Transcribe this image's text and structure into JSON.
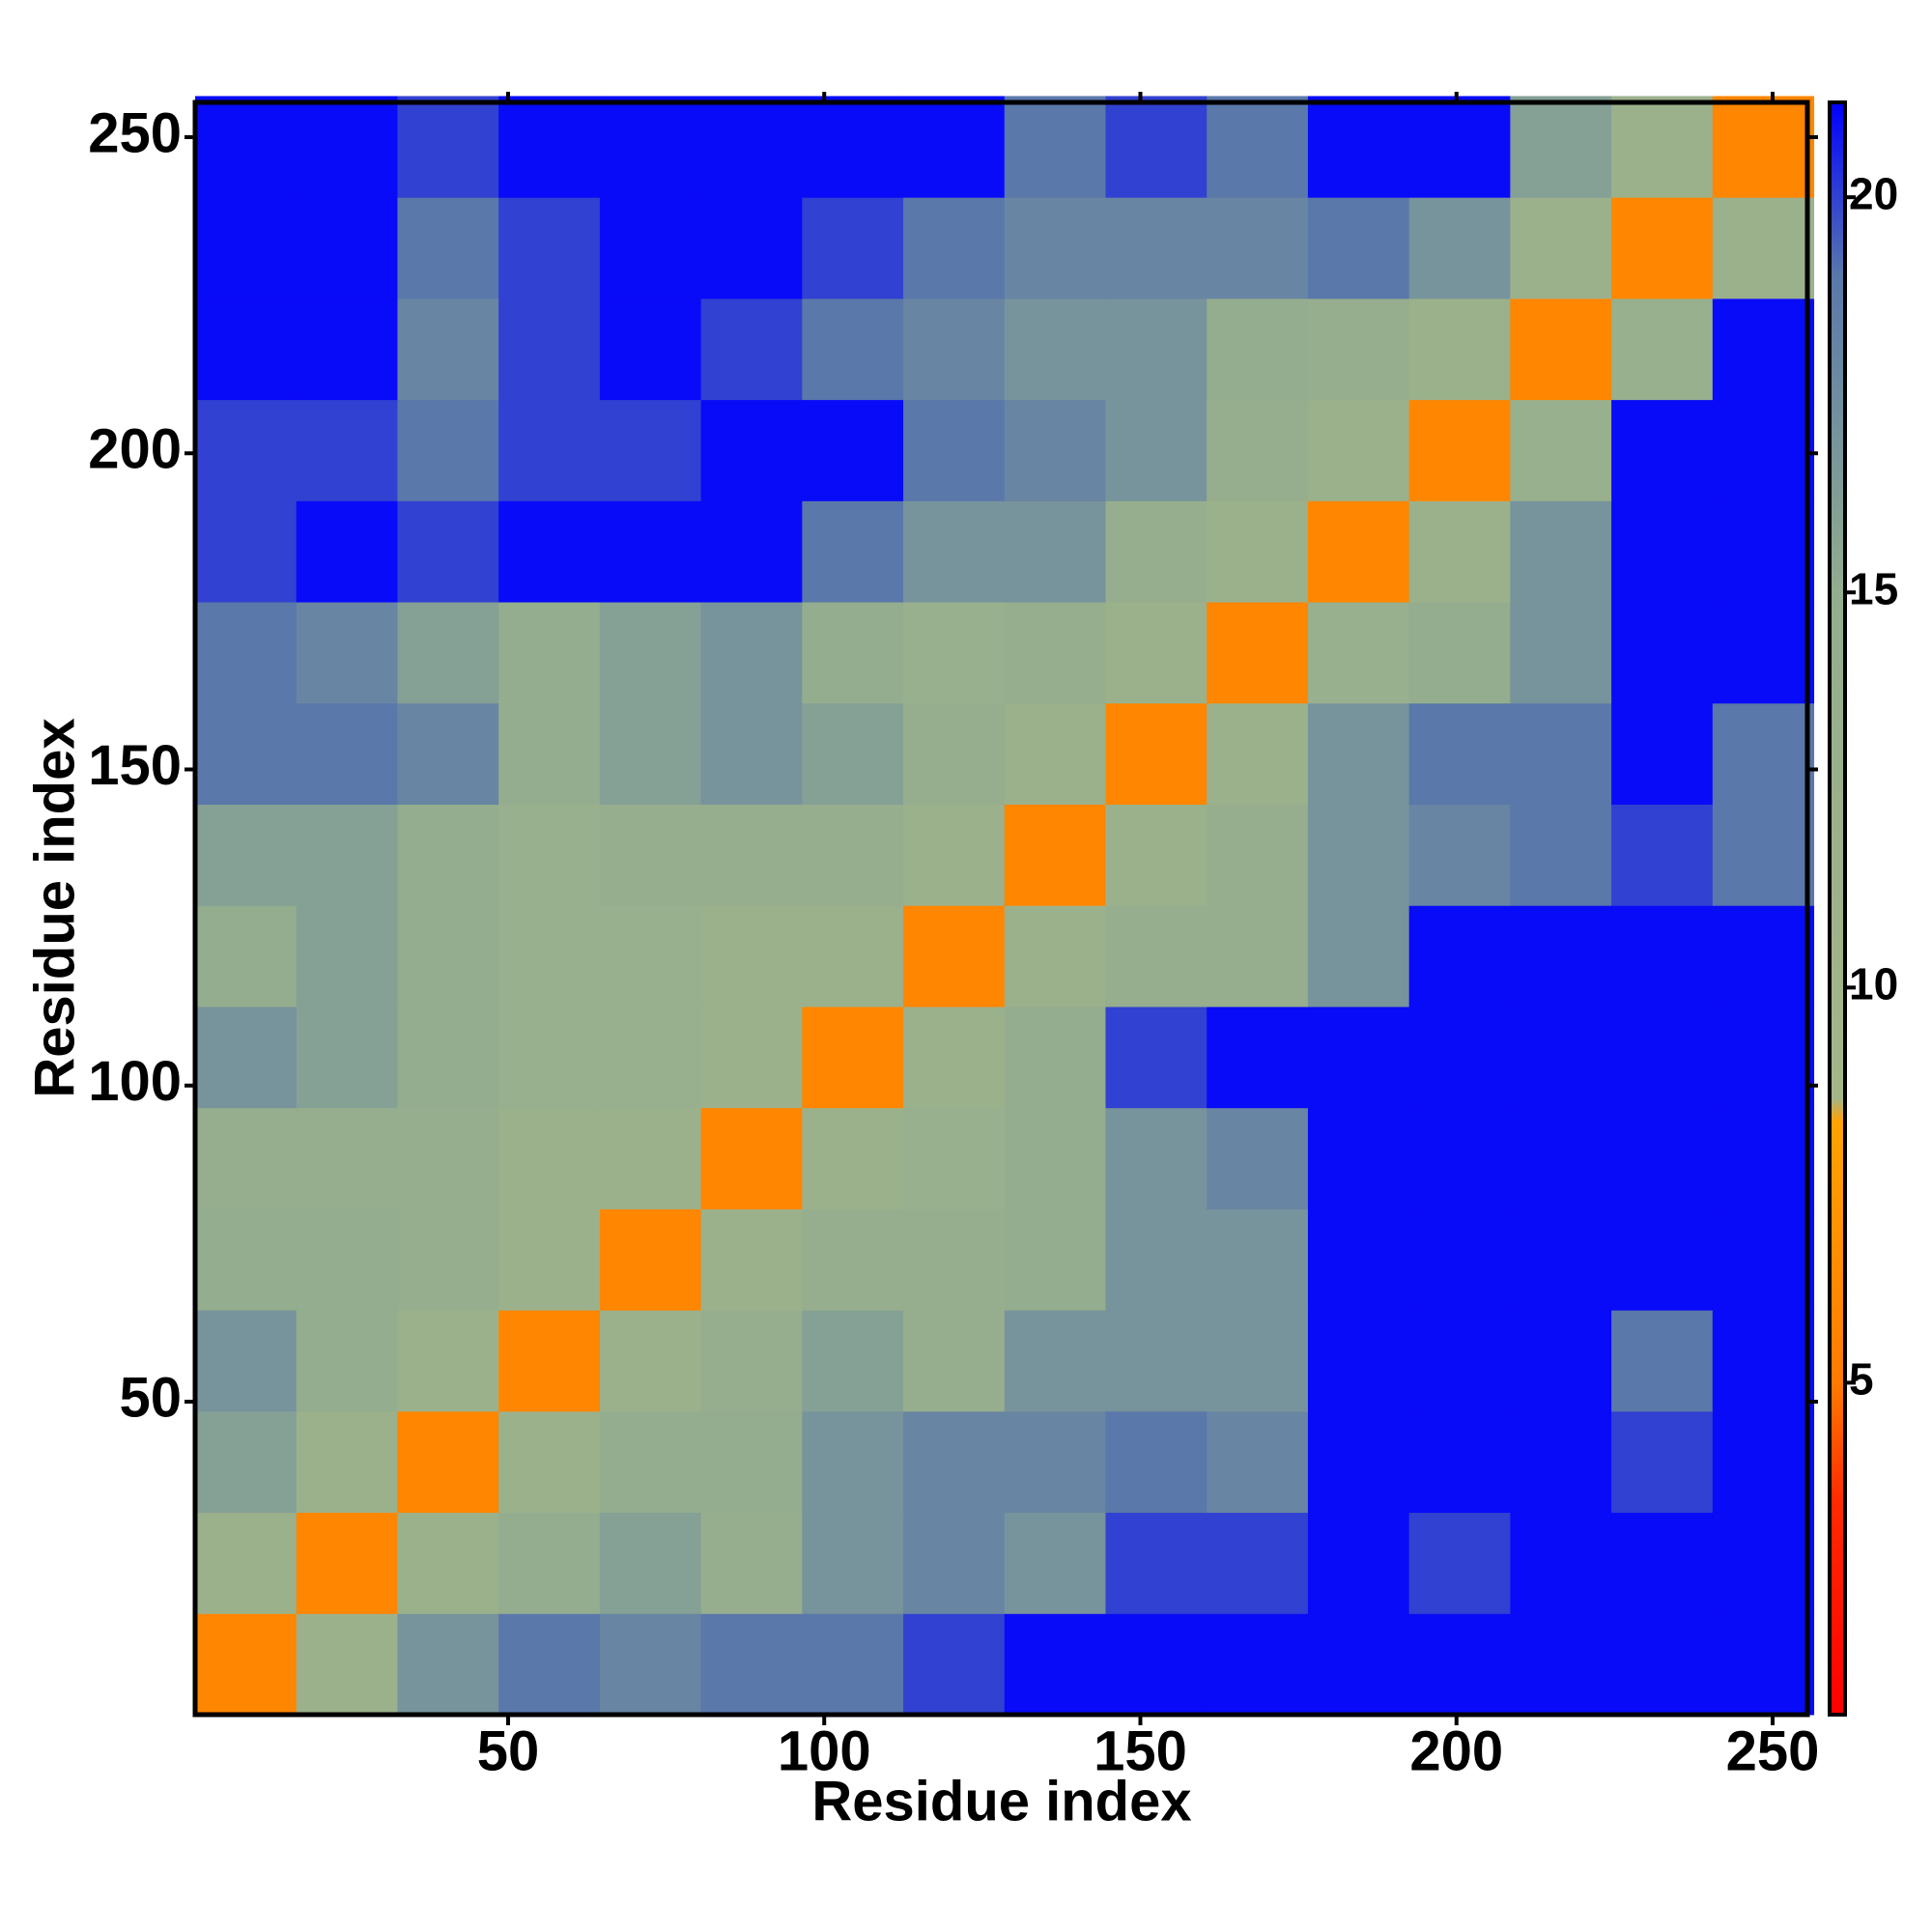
{
  "chart_data": {
    "type": "heatmap",
    "xlabel": "Residue index",
    "ylabel": "Residue index",
    "x": [
      8.5,
      24.5,
      40.5,
      56.5,
      72.5,
      88.5,
      104.5,
      120.5,
      136.5,
      152.5,
      168.5,
      184.5,
      200.5,
      216.5,
      232.5,
      248.5
    ],
    "y": [
      8.5,
      24.5,
      40.5,
      56.5,
      72.5,
      88.5,
      104.5,
      120.5,
      136.5,
      152.5,
      168.5,
      184.5,
      200.5,
      216.5,
      232.5,
      248.5
    ],
    "z": [
      [
        6,
        12,
        17,
        19,
        18,
        19,
        19,
        20,
        21,
        21,
        21,
        21,
        21,
        21,
        21,
        21
      ],
      [
        12,
        6,
        12,
        15,
        16,
        14,
        17,
        18,
        17,
        20,
        20,
        21,
        20,
        21,
        21,
        21
      ],
      [
        16,
        12,
        6,
        12,
        15,
        15,
        17,
        18,
        18,
        19,
        18,
        21,
        21,
        21,
        20,
        21
      ],
      [
        17,
        15,
        12,
        6,
        12,
        14,
        16,
        14,
        17,
        17,
        17,
        21,
        21,
        21,
        19,
        21
      ],
      [
        15,
        15,
        14,
        12,
        6,
        12,
        14,
        14,
        15,
        17,
        17,
        21,
        21,
        21,
        21,
        21
      ],
      [
        14,
        14,
        14,
        12,
        12,
        6,
        12,
        13,
        15,
        17,
        18,
        21,
        21,
        21,
        21,
        21
      ],
      [
        17,
        16,
        15,
        13,
        13,
        12,
        6,
        12,
        15,
        20,
        21,
        21,
        21,
        21,
        21,
        21
      ],
      [
        15,
        16,
        15,
        13,
        13,
        12,
        12,
        6,
        12,
        14,
        14,
        17,
        21,
        21,
        21,
        21
      ],
      [
        16,
        16,
        15,
        13,
        14,
        14,
        14,
        12,
        6,
        12,
        14,
        17,
        18,
        19,
        20,
        19
      ],
      [
        19,
        19,
        18,
        15,
        16,
        17,
        16,
        14,
        12,
        6,
        12,
        17,
        19,
        19,
        21,
        19
      ],
      [
        19,
        18,
        16,
        15,
        16,
        17,
        15,
        13,
        14,
        12,
        6,
        13,
        15,
        17,
        21,
        21
      ],
      [
        20,
        21,
        20,
        21,
        21,
        21,
        19,
        17,
        17,
        14,
        12,
        6,
        12,
        17,
        21,
        21
      ],
      [
        20,
        20,
        19,
        20,
        20,
        21,
        21,
        19,
        18,
        17,
        14,
        12,
        6,
        13,
        21,
        21
      ],
      [
        21,
        21,
        18,
        20,
        21,
        20,
        19,
        18,
        17,
        17,
        15,
        14,
        12,
        6,
        13,
        21
      ],
      [
        21,
        21,
        19,
        20,
        21,
        21,
        20,
        19,
        18,
        18,
        18,
        19,
        17,
        12,
        6,
        12
      ],
      [
        21,
        21,
        20,
        21,
        21,
        21,
        21,
        21,
        19,
        20,
        19,
        21,
        21,
        16,
        12,
        6
      ]
    ],
    "xlim": [
      0.5,
      255.5
    ],
    "ylim": [
      0.5,
      255.5
    ],
    "xticks": [
      50,
      100,
      150,
      200,
      250
    ],
    "yticks": [
      50,
      100,
      150,
      200,
      250
    ],
    "clim": [
      0.8,
      21.2
    ],
    "cticks": [
      5,
      10,
      15,
      20
    ],
    "colorscale": [
      [
        0.8,
        "#ff0000"
      ],
      [
        3.5,
        "#ff2a00"
      ],
      [
        5,
        "#ff7a00"
      ],
      [
        8.3,
        "#ffa200"
      ],
      [
        8.6,
        "#a4b68a"
      ],
      [
        15,
        "#93ad8e"
      ],
      [
        19,
        "#5a78aa"
      ],
      [
        21.2,
        "#0000ff"
      ]
    ]
  }
}
